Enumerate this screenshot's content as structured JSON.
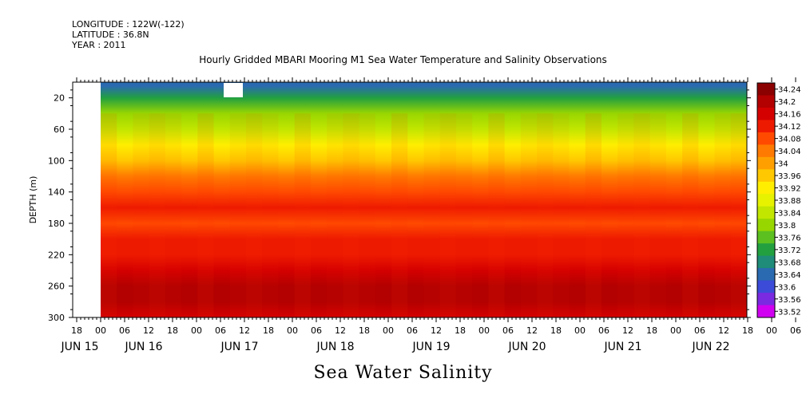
{
  "header": {
    "longitude": "LONGITUDE : 122W(-122)",
    "latitude": "LATITUDE : 36.8N",
    "year": "YEAR : 2011"
  },
  "chart_data": {
    "type": "heatmap",
    "title": "Hourly Gridded MBARI Mooring M1 Sea Water Temperature and Salinity Observations",
    "variable_label": "Sea Water Salinity",
    "ylabel": "DEPTH (m)",
    "ylim": [
      300,
      0
    ],
    "y_inverted": true,
    "y_ticks": [
      20,
      60,
      100,
      140,
      180,
      220,
      260,
      300
    ],
    "x_hour_ticks": [
      "18",
      "00",
      "06",
      "12",
      "18",
      "00",
      "06",
      "12",
      "18",
      "00",
      "06",
      "12",
      "18",
      "00",
      "06",
      "12",
      "18",
      "00",
      "06",
      "12",
      "18",
      "00",
      "06",
      "12",
      "18",
      "00",
      "06",
      "12",
      "18",
      "00",
      "06",
      "12"
    ],
    "x_day_labels": [
      "JUN 15",
      "JUN 16",
      "JUN 17",
      "JUN 18",
      "JUN 19",
      "JUN 20",
      "JUN 21",
      "JUN 22"
    ],
    "colorbar_levels": [
      "34.24",
      "34.2",
      "34.16",
      "34.12",
      "34.08",
      "34.04",
      "34",
      "33.96",
      "33.92",
      "33.88",
      "33.84",
      "33.8",
      "33.76",
      "33.72",
      "33.68",
      "33.64",
      "33.6",
      "33.56",
      "33.52"
    ],
    "colors": {
      "34.24": "#8b0000",
      "34.2": "#b30000",
      "34.16": "#d40000",
      "34.12": "#ee1a00",
      "34.08": "#ff4a00",
      "34.04": "#ff7a00",
      "34": "#ffa000",
      "33.96": "#ffc800",
      "33.92": "#ffee00",
      "33.88": "#e6f200",
      "33.84": "#c2e600",
      "33.8": "#98d600",
      "33.76": "#5cc020",
      "33.72": "#22a040",
      "33.68": "#1e8c78",
      "33.64": "#2a6ab0",
      "33.6": "#3c4bd8",
      "33.56": "#7a2ae0",
      "33.52": "#d000f0"
    },
    "depth_profile": [
      {
        "depth": 5,
        "salinity": 33.63
      },
      {
        "depth": 20,
        "salinity": 33.7
      },
      {
        "depth": 40,
        "salinity": 33.78
      },
      {
        "depth": 60,
        "salinity": 33.85
      },
      {
        "depth": 80,
        "salinity": 33.92
      },
      {
        "depth": 100,
        "salinity": 33.98
      },
      {
        "depth": 120,
        "salinity": 34.04
      },
      {
        "depth": 140,
        "salinity": 34.08
      },
      {
        "depth": 160,
        "salinity": 34.1
      },
      {
        "depth": 180,
        "salinity": 34.07
      },
      {
        "depth": 200,
        "salinity": 34.1
      },
      {
        "depth": 220,
        "salinity": 34.13
      },
      {
        "depth": 240,
        "salinity": 34.17
      },
      {
        "depth": 260,
        "salinity": 34.22
      },
      {
        "depth": 280,
        "salinity": 34.18
      },
      {
        "depth": 300,
        "salinity": 34.15
      }
    ]
  }
}
